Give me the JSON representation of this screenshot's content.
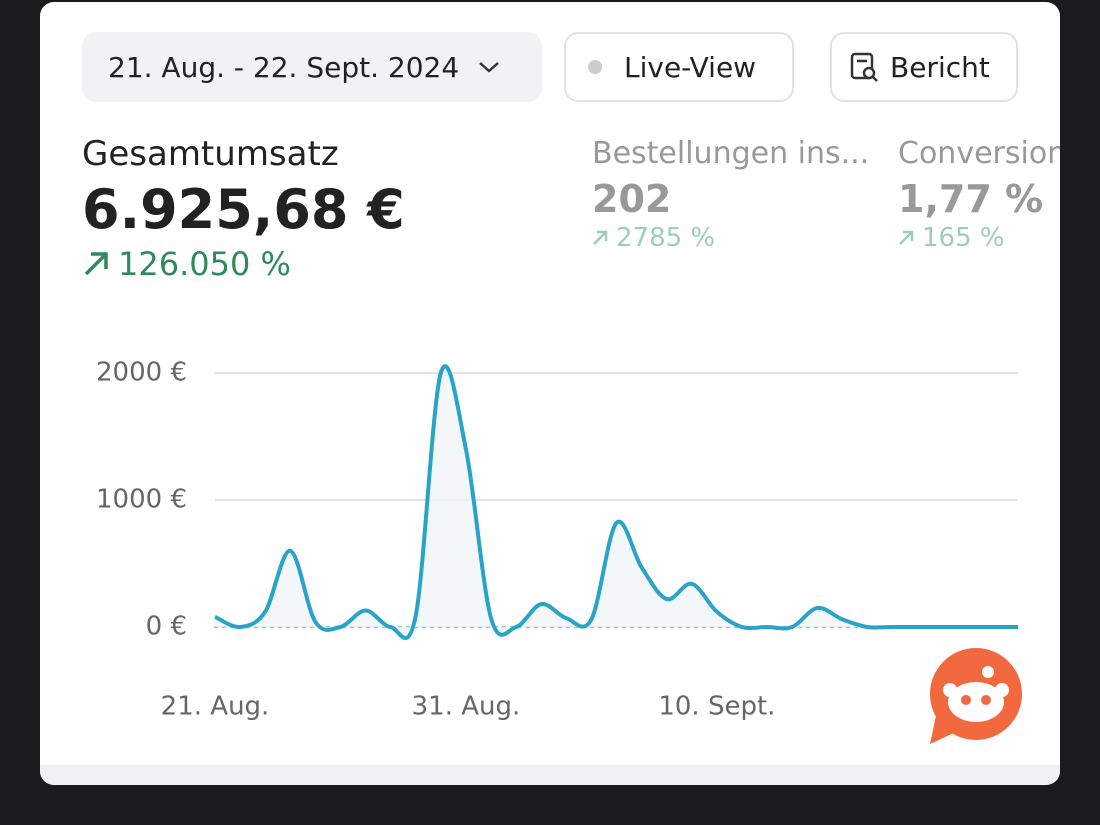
{
  "toolbar": {
    "date_range": "21. Aug. - 22. Sept. 2024",
    "live_view": "Live-View",
    "report": "Bericht"
  },
  "metrics": [
    {
      "label": "Gesamtumsatz",
      "value": "6.925,68 €",
      "change": "126.050 %"
    },
    {
      "label": "Bestellungen ins...",
      "value": "202",
      "change": "2785 %"
    },
    {
      "label": "Conversion",
      "value": "1,77 %",
      "change": "165 %"
    }
  ],
  "chart_data": {
    "type": "line",
    "color": "#2aa3c9",
    "categories": [
      "21. Aug.",
      null,
      null,
      null,
      null,
      null,
      null,
      null,
      null,
      null,
      "31. Aug.",
      null,
      null,
      null,
      null,
      null,
      null,
      null,
      null,
      null,
      "10. Sept.",
      null,
      null,
      null,
      null,
      null,
      null,
      null,
      null,
      null,
      null,
      null,
      null
    ],
    "values": [
      80,
      0,
      120,
      600,
      40,
      0,
      130,
      0,
      90,
      2000,
      1400,
      70,
      0,
      180,
      70,
      60,
      820,
      470,
      220,
      340,
      120,
      0,
      0,
      0,
      150,
      60,
      0,
      0,
      0,
      0,
      0,
      0,
      0
    ],
    "ylim": [
      0,
      2000
    ],
    "yticks": [
      {
        "value": 0,
        "label": "0 €"
      },
      {
        "value": 1000,
        "label": "1000 €"
      },
      {
        "value": 2000,
        "label": "2000 €"
      }
    ],
    "grid": true
  }
}
